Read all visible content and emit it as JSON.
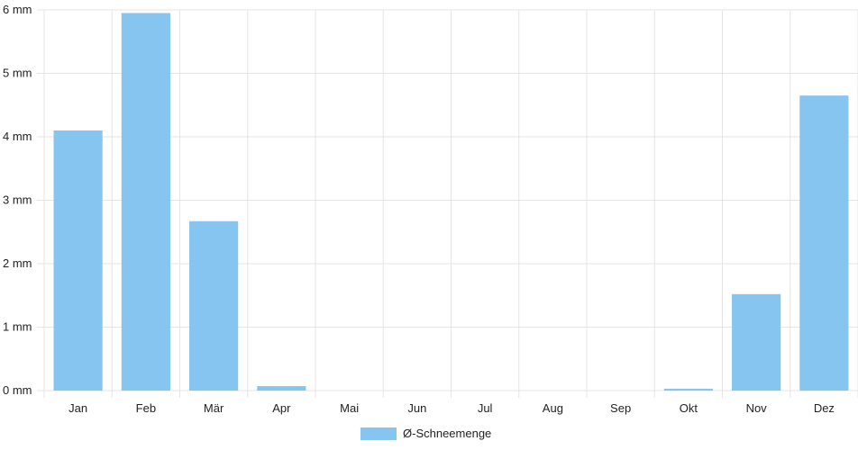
{
  "chart_data": {
    "type": "bar",
    "categories": [
      "Jan",
      "Feb",
      "Mär",
      "Apr",
      "Mai",
      "Jun",
      "Jul",
      "Aug",
      "Sep",
      "Okt",
      "Nov",
      "Dez"
    ],
    "series": [
      {
        "name": "Ø-Schneemenge",
        "values": [
          4.1,
          5.95,
          2.67,
          0.07,
          0,
          0,
          0,
          0,
          0,
          0.03,
          1.52,
          4.65
        ]
      }
    ],
    "title": "",
    "xlabel": "",
    "ylabel": "",
    "ylim": [
      0,
      6
    ],
    "yticks": [
      "0 mm",
      "1 mm",
      "2 mm",
      "3 mm",
      "4 mm",
      "5 mm",
      "6 mm"
    ],
    "grid": true,
    "legend_position": "bottom-center",
    "colors": {
      "bar": "#86c5f0",
      "grid": "#e5e5e5"
    }
  }
}
